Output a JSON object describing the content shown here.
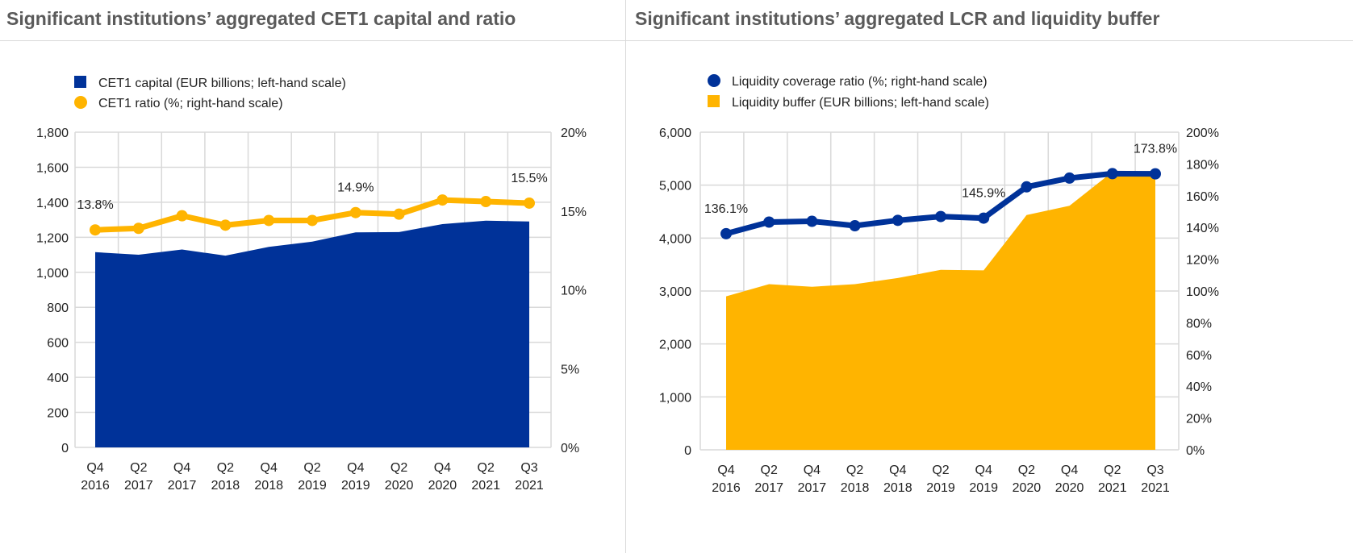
{
  "chart_data": [
    {
      "type": "area+line",
      "title": "Significant institutions’ aggregated CET1 capital and ratio",
      "categories": [
        [
          "Q4",
          "2016"
        ],
        [
          "Q2",
          "2017"
        ],
        [
          "Q4",
          "2017"
        ],
        [
          "Q2",
          "2018"
        ],
        [
          "Q4",
          "2018"
        ],
        [
          "Q2",
          "2019"
        ],
        [
          "Q4",
          "2019"
        ],
        [
          "Q2",
          "2020"
        ],
        [
          "Q4",
          "2020"
        ],
        [
          "Q2",
          "2021"
        ],
        [
          "Q3",
          "2021"
        ]
      ],
      "legend": [
        "CET1 capital (EUR billions; left-hand scale)",
        "CET1 ratio (%; right-hand scale)"
      ],
      "legend_markers": [
        "square",
        "circle"
      ],
      "area": {
        "name": "CET1 capital (EUR billions; left-hand scale)",
        "axis": "left",
        "color": "#003299",
        "values": [
          1115,
          1100,
          1130,
          1095,
          1145,
          1175,
          1228,
          1230,
          1275,
          1295,
          1290
        ]
      },
      "line": {
        "name": "CET1 ratio (%; right-hand scale)",
        "axis": "right",
        "color": "#FFB400",
        "values": [
          13.8,
          13.9,
          14.7,
          14.1,
          14.4,
          14.4,
          14.9,
          14.8,
          15.7,
          15.6,
          15.5
        ]
      },
      "data_labels": [
        {
          "index": 0,
          "text": "13.8%"
        },
        {
          "index": 6,
          "text": "14.9%"
        },
        {
          "index": 10,
          "text": "15.5%"
        }
      ],
      "left_axis": {
        "ylim": [
          0,
          1800
        ],
        "ticks": [
          0,
          200,
          400,
          600,
          800,
          1000,
          1200,
          1400,
          1600,
          1800
        ],
        "tick_labels": [
          "0",
          "200",
          "400",
          "600",
          "800",
          "1,000",
          "1,200",
          "1,400",
          "1,600",
          "1,800"
        ]
      },
      "right_axis": {
        "ylim": [
          0,
          20
        ],
        "ticks": [
          0,
          5,
          10,
          15,
          20
        ],
        "tick_labels": [
          "0%",
          "5%",
          "10%",
          "15%",
          "20%"
        ]
      },
      "grid": true,
      "legend_position": "top-left"
    },
    {
      "type": "area+line",
      "title": "Significant institutions’ aggregated LCR and liquidity buffer",
      "categories": [
        [
          "Q4",
          "2016"
        ],
        [
          "Q2",
          "2017"
        ],
        [
          "Q4",
          "2017"
        ],
        [
          "Q2",
          "2018"
        ],
        [
          "Q4",
          "2018"
        ],
        [
          "Q2",
          "2019"
        ],
        [
          "Q4",
          "2019"
        ],
        [
          "Q2",
          "2020"
        ],
        [
          "Q4",
          "2020"
        ],
        [
          "Q2",
          "2021"
        ],
        [
          "Q3",
          "2021"
        ]
      ],
      "legend": [
        "Liquidity coverage ratio (%; right-hand scale)",
        "Liquidity buffer (EUR billions; left-hand scale)"
      ],
      "legend_markers": [
        "circle",
        "square"
      ],
      "area": {
        "name": "Liquidity buffer (EUR billions; left-hand scale)",
        "axis": "left",
        "color": "#FFB400",
        "values": [
          2900,
          3130,
          3080,
          3130,
          3245,
          3400,
          3390,
          4435,
          4610,
          5250,
          5265
        ]
      },
      "line": {
        "name": "Liquidity coverage ratio (%; right-hand scale)",
        "axis": "right",
        "color": "#003299",
        "values": [
          136.1,
          143.4,
          143.9,
          141.1,
          144.5,
          146.9,
          145.9,
          165.6,
          171.1,
          173.9,
          173.8
        ]
      },
      "data_labels": [
        {
          "index": 0,
          "text": "136.1%"
        },
        {
          "index": 6,
          "text": "145.9%"
        },
        {
          "index": 10,
          "text": "173.8%"
        }
      ],
      "left_axis": {
        "ylim": [
          0,
          6000
        ],
        "ticks": [
          0,
          1000,
          2000,
          3000,
          4000,
          5000,
          6000
        ],
        "tick_labels": [
          "0",
          "1,000",
          "2,000",
          "3,000",
          "4,000",
          "5,000",
          "6,000"
        ]
      },
      "right_axis": {
        "ylim": [
          0,
          200
        ],
        "ticks": [
          0,
          20,
          40,
          60,
          80,
          100,
          120,
          140,
          160,
          180,
          200
        ],
        "tick_labels": [
          "0%",
          "20%",
          "40%",
          "60%",
          "80%",
          "100%",
          "120%",
          "140%",
          "160%",
          "180%",
          "200%"
        ]
      },
      "grid": true,
      "legend_position": "top-left"
    }
  ]
}
